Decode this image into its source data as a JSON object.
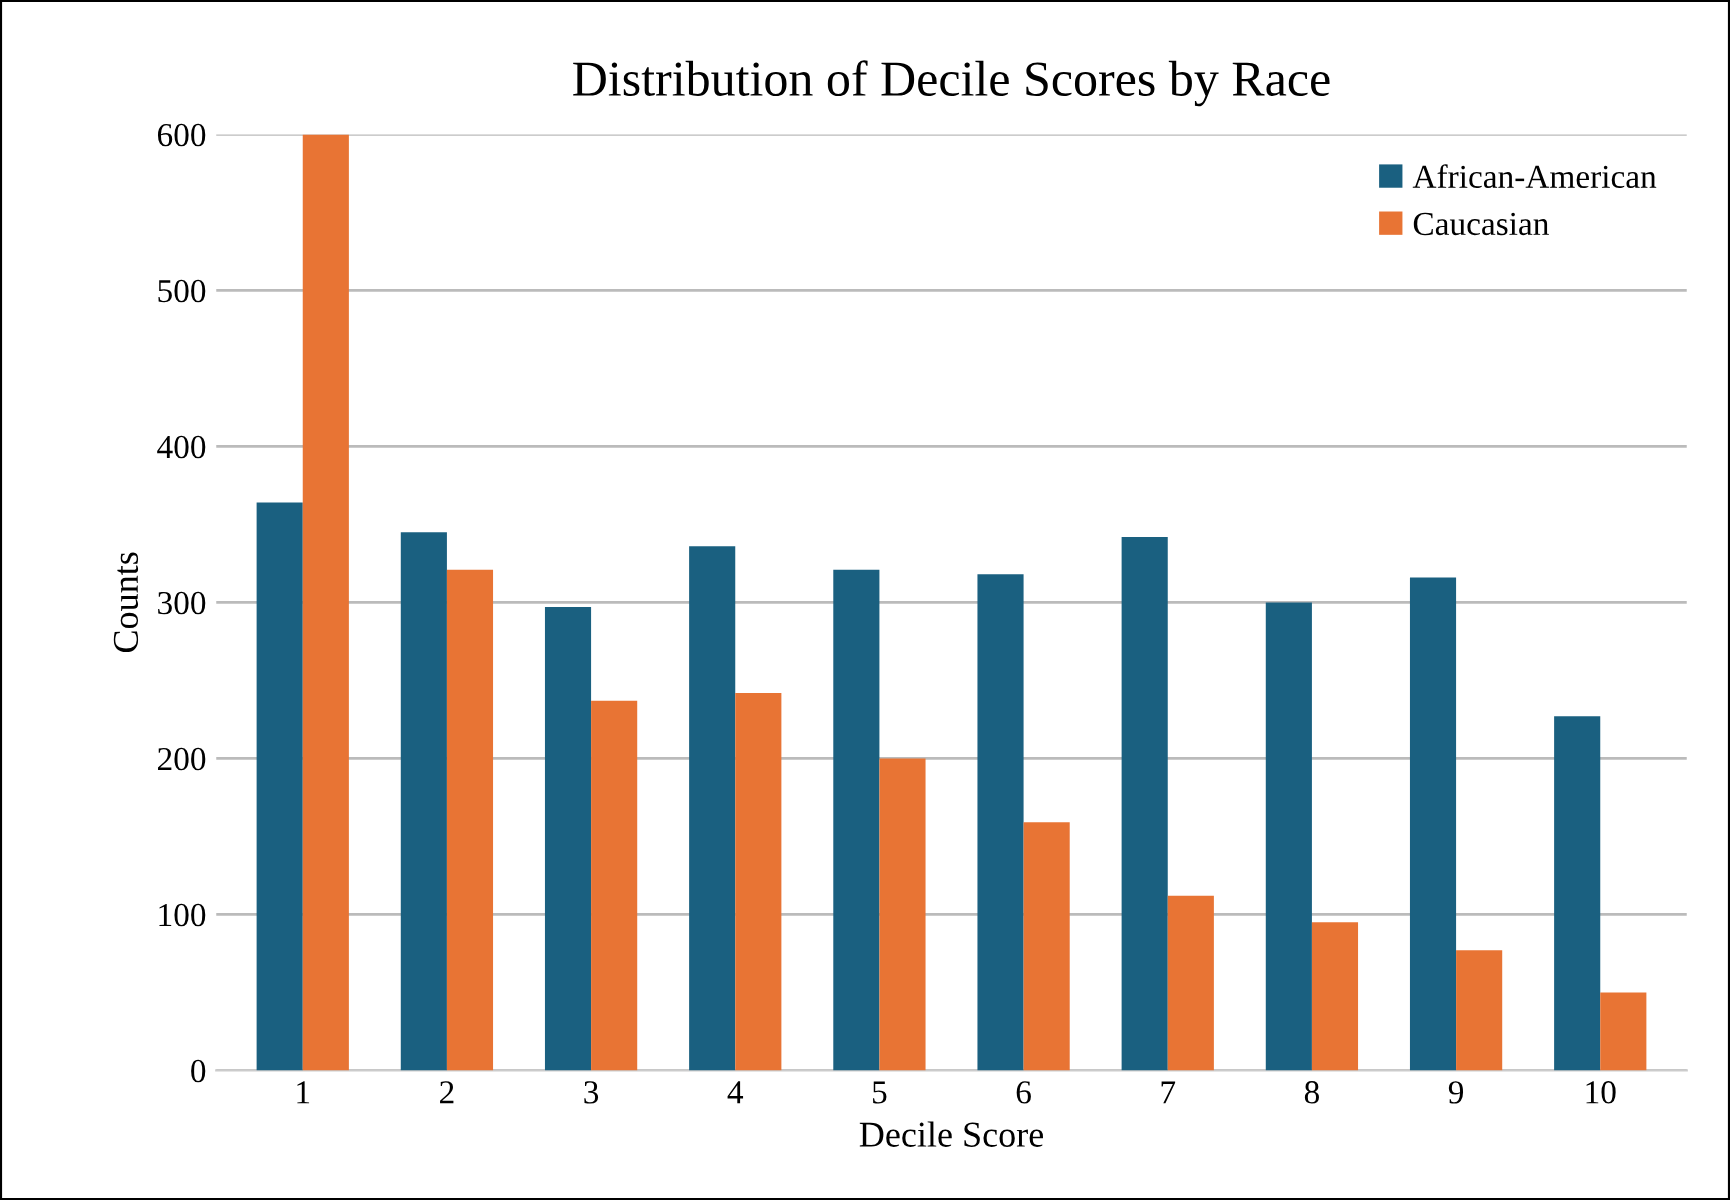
{
  "chart_data": {
    "type": "bar",
    "title": "Distribution of Decile Scores by Race",
    "xlabel": "Decile Score",
    "ylabel": "Counts",
    "categories": [
      "1",
      "2",
      "3",
      "4",
      "5",
      "6",
      "7",
      "8",
      "9",
      "10"
    ],
    "series": [
      {
        "name": "African-American",
        "color": "#1a6080",
        "values": [
          364,
          345,
          297,
          336,
          321,
          318,
          342,
          300,
          316,
          227
        ]
      },
      {
        "name": "Caucasian",
        "color": "#e87434",
        "values": [
          600,
          321,
          237,
          242,
          200,
          159,
          112,
          95,
          77,
          50
        ]
      }
    ],
    "ylim": [
      0,
      600
    ],
    "yticks": [
      0,
      100,
      200,
      300,
      400,
      500,
      600
    ],
    "grid": "y",
    "legend": "top right"
  }
}
